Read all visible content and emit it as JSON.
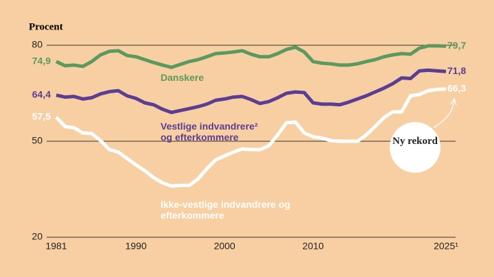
{
  "chart_data": {
    "type": "line",
    "ylabel": "Procent",
    "x": [
      1981,
      1982,
      1983,
      1984,
      1985,
      1986,
      1987,
      1988,
      1989,
      1990,
      1991,
      1992,
      1993,
      1994,
      1995,
      1996,
      1997,
      1998,
      1999,
      2000,
      2001,
      2002,
      2003,
      2004,
      2005,
      2006,
      2007,
      2008,
      2009,
      2010,
      2011,
      2012,
      2013,
      2014,
      2015,
      2016,
      2017,
      2018,
      2019,
      2020,
      2021,
      2022,
      2023,
      2024,
      2025
    ],
    "xlim": [
      1981,
      2025
    ],
    "xticks": [
      1981,
      1990,
      2000,
      2010,
      {
        "value": 2025,
        "label": "2025¹"
      }
    ],
    "ylim": [
      20,
      80
    ],
    "yticks": [
      20,
      50,
      80
    ],
    "grid": true,
    "series": [
      {
        "name": "Danskere",
        "color": "#5a9a5e",
        "values": [
          74.9,
          73.6,
          73.8,
          73.4,
          74.9,
          77.0,
          78.1,
          78.3,
          76.8,
          76.4,
          75.5,
          74.6,
          73.8,
          73.1,
          74.0,
          74.9,
          75.5,
          76.4,
          77.4,
          77.6,
          77.9,
          78.3,
          77.2,
          76.4,
          76.4,
          77.4,
          78.7,
          79.4,
          77.9,
          74.9,
          74.4,
          74.2,
          73.8,
          73.8,
          74.2,
          74.9,
          75.5,
          76.4,
          77.0,
          77.4,
          77.2,
          79.1,
          79.8,
          79.8,
          79.7
        ],
        "value_labels": [
          "74,9",
          null,
          null,
          null,
          null,
          null,
          null,
          null,
          null,
          null,
          null,
          null,
          null,
          null,
          null,
          null,
          null,
          null,
          null,
          null,
          null,
          null,
          null,
          null,
          null,
          null,
          null,
          null,
          null,
          null,
          null,
          null,
          null,
          null,
          null,
          null,
          null,
          null,
          null,
          null,
          null,
          null,
          null,
          null,
          "79,7"
        ]
      },
      {
        "name": "Vestlige indvandrere² og efterkommere",
        "color": "#5b3d93",
        "values": [
          64.4,
          63.8,
          64.0,
          63.2,
          63.6,
          64.8,
          65.5,
          65.8,
          64.2,
          63.4,
          62.0,
          61.4,
          60.0,
          59.0,
          59.6,
          60.2,
          60.8,
          61.6,
          62.8,
          63.2,
          63.8,
          64.0,
          63.0,
          61.8,
          62.4,
          63.6,
          65.0,
          65.4,
          65.2,
          62.0,
          61.6,
          61.6,
          61.4,
          62.2,
          63.2,
          64.2,
          65.4,
          66.6,
          68.0,
          69.8,
          69.6,
          72.0,
          72.2,
          72.0,
          71.8
        ],
        "value_labels": [
          "64,4",
          null,
          null,
          null,
          null,
          null,
          null,
          null,
          null,
          null,
          null,
          null,
          null,
          null,
          null,
          null,
          null,
          null,
          null,
          null,
          null,
          null,
          null,
          null,
          null,
          null,
          null,
          null,
          null,
          null,
          null,
          null,
          null,
          null,
          null,
          null,
          null,
          null,
          null,
          null,
          null,
          null,
          null,
          null,
          "71,8"
        ]
      },
      {
        "name": "Ikke-vestlige indvandrere og efterkommere",
        "color": "#ffffff",
        "values": [
          57.5,
          54.6,
          54.2,
          52.6,
          52.4,
          50.2,
          47.4,
          46.6,
          44.6,
          42.6,
          40.8,
          38.6,
          37.0,
          36.0,
          36.2,
          36.2,
          38.2,
          41.4,
          44.2,
          45.4,
          46.6,
          47.6,
          47.4,
          47.4,
          48.6,
          52.0,
          55.8,
          56.0,
          52.6,
          51.4,
          51.0,
          50.2,
          50.0,
          50.0,
          50.0,
          52.0,
          54.6,
          57.4,
          59.2,
          59.2,
          64.2,
          64.6,
          65.8,
          66.2,
          66.3
        ],
        "value_labels": [
          "57,5",
          null,
          null,
          null,
          null,
          null,
          null,
          null,
          null,
          null,
          null,
          null,
          null,
          null,
          null,
          null,
          null,
          null,
          null,
          null,
          null,
          null,
          null,
          null,
          null,
          null,
          null,
          null,
          null,
          null,
          null,
          null,
          null,
          null,
          null,
          null,
          null,
          null,
          null,
          null,
          null,
          null,
          null,
          null,
          "66,3"
        ]
      }
    ],
    "annotation": "Ny rekord"
  }
}
